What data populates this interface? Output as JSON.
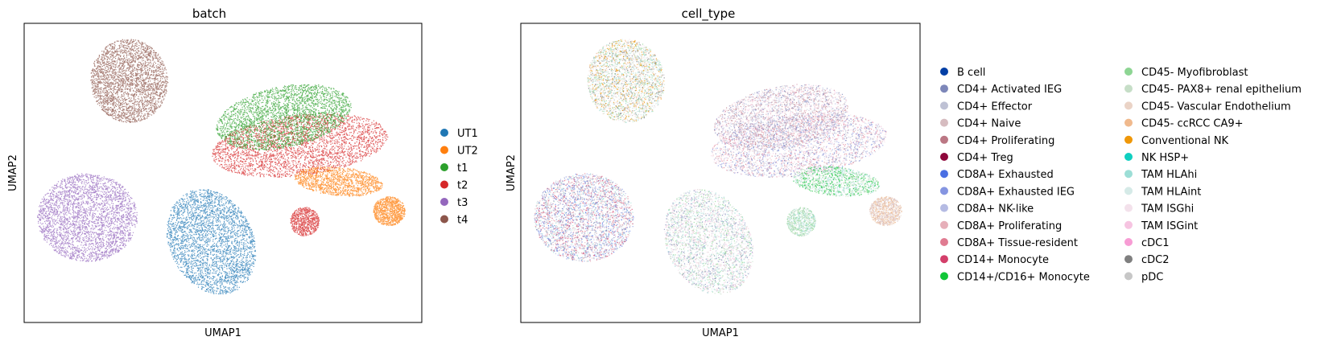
{
  "chart_data": [
    {
      "type": "scatter",
      "title": "batch",
      "xlabel": "UMAP1",
      "ylabel": "UMAP2",
      "grid": false,
      "legend_position": "right",
      "series": [
        {
          "name": "UT1",
          "color": "#1f77b4"
        },
        {
          "name": "UT2",
          "color": "#ff7f0e"
        },
        {
          "name": "t1",
          "color": "#2ca02c"
        },
        {
          "name": "t2",
          "color": "#d62728"
        },
        {
          "name": "t3",
          "color": "#9467bd"
        },
        {
          "name": "t4",
          "color": "#8c564b"
        }
      ]
    },
    {
      "type": "scatter",
      "title": "cell_type",
      "xlabel": "UMAP1",
      "ylabel": "UMAP2",
      "grid": false,
      "legend_position": "right",
      "series": [
        {
          "name": "B cell",
          "color": "#023fa5"
        },
        {
          "name": "CD4+ Activated IEG",
          "color": "#7d87b9"
        },
        {
          "name": "CD4+ Effector",
          "color": "#bec1d4"
        },
        {
          "name": "CD4+ Naive",
          "color": "#d6bcc0"
        },
        {
          "name": "CD4+ Proliferating",
          "color": "#bb7784"
        },
        {
          "name": "CD4+ Treg",
          "color": "#8e063b"
        },
        {
          "name": "CD8A+ Exhausted",
          "color": "#4a6fe3"
        },
        {
          "name": "CD8A+ Exhausted IEG",
          "color": "#8595e1"
        },
        {
          "name": "CD8A+ NK-like",
          "color": "#b5bbe3"
        },
        {
          "name": "CD8A+ Proliferating",
          "color": "#e6afb9"
        },
        {
          "name": "CD8A+ Tissue-resident",
          "color": "#e07b91"
        },
        {
          "name": "CD14+ Monocyte",
          "color": "#d33f6a"
        },
        {
          "name": "CD14+/CD16+ Monocyte",
          "color": "#11c638"
        },
        {
          "name": "CD45- Myofibroblast",
          "color": "#8dd593"
        },
        {
          "name": "CD45- PAX8+ renal epithelium",
          "color": "#c6dec7"
        },
        {
          "name": "CD45- Vascular Endothelium",
          "color": "#ead3c6"
        },
        {
          "name": "CD45- ccRCC CA9+",
          "color": "#f0b98d"
        },
        {
          "name": "Conventional NK",
          "color": "#ef9708"
        },
        {
          "name": "NK HSP+",
          "color": "#0fcfc0"
        },
        {
          "name": "TAM HLAhi",
          "color": "#9cded6"
        },
        {
          "name": "TAM HLAint",
          "color": "#d5eae7"
        },
        {
          "name": "TAM ISGhi",
          "color": "#f3e1eb"
        },
        {
          "name": "TAM ISGint",
          "color": "#f6c4e1"
        },
        {
          "name": "cDC1",
          "color": "#f79cd4"
        },
        {
          "name": "cDC2",
          "color": "#7f7f7f"
        },
        {
          "name": "pDC",
          "color": "#c7c7c7"
        }
      ]
    }
  ]
}
